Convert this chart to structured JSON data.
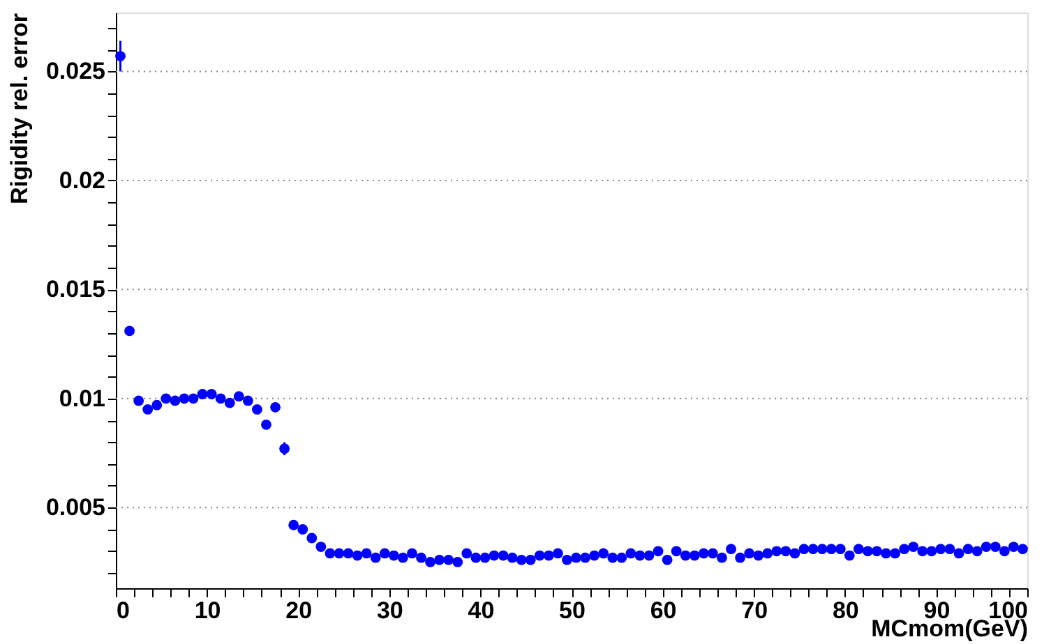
{
  "chart_data": {
    "type": "scatter",
    "xlabel": "MCmom(GeV)",
    "ylabel": "Rigidity rel. error",
    "x": [
      0.5,
      1.5,
      2.5,
      3.5,
      4.5,
      5.5,
      6.5,
      7.5,
      8.5,
      9.5,
      10.5,
      11.5,
      12.5,
      13.5,
      14.5,
      15.5,
      16.5,
      17.5,
      18.5,
      19.5,
      20.5,
      21.5,
      22.5,
      23.5,
      24.5,
      25.5,
      26.5,
      27.5,
      28.5,
      29.5,
      30.5,
      31.5,
      32.5,
      33.5,
      34.5,
      35.5,
      36.5,
      37.5,
      38.5,
      39.5,
      40.5,
      41.5,
      42.5,
      43.5,
      44.5,
      45.5,
      46.5,
      47.5,
      48.5,
      49.5,
      50.5,
      51.5,
      52.5,
      53.5,
      54.5,
      55.5,
      56.5,
      57.5,
      58.5,
      59.5,
      60.5,
      61.5,
      62.5,
      63.5,
      64.5,
      65.5,
      66.5,
      67.5,
      68.5,
      69.5,
      70.5,
      71.5,
      72.5,
      73.5,
      74.5,
      75.5,
      76.5,
      77.5,
      78.5,
      79.5,
      80.5,
      81.5,
      82.5,
      83.5,
      84.5,
      85.5,
      86.5,
      87.5,
      88.5,
      89.5,
      90.5,
      91.5,
      92.5,
      93.5,
      94.5,
      95.5,
      96.5,
      97.5,
      98.5,
      99.5
    ],
    "series": [
      {
        "color": "#0000ff",
        "values": [
          0.0257,
          0.0131,
          0.0099,
          0.0095,
          0.0097,
          0.01,
          0.0099,
          0.01,
          0.01,
          0.0102,
          0.0102,
          0.01,
          0.0098,
          0.0101,
          0.0099,
          0.0095,
          0.0088,
          0.0096,
          0.0077,
          0.0042,
          0.004,
          0.0036,
          0.0032,
          0.0029,
          0.0029,
          0.0029,
          0.0028,
          0.0029,
          0.0027,
          0.0029,
          0.0028,
          0.0027,
          0.0029,
          0.0027,
          0.0025,
          0.0026,
          0.0026,
          0.0025,
          0.0029,
          0.0027,
          0.0027,
          0.0028,
          0.0028,
          0.0027,
          0.0026,
          0.0026,
          0.0028,
          0.0028,
          0.0029,
          0.0026,
          0.0027,
          0.0027,
          0.0028,
          0.0029,
          0.0027,
          0.0027,
          0.0029,
          0.0028,
          0.0028,
          0.003,
          0.0026,
          0.003,
          0.0028,
          0.0028,
          0.0029,
          0.0029,
          0.0027,
          0.0031,
          0.0027,
          0.0029,
          0.0028,
          0.0029,
          0.003,
          0.003,
          0.0029,
          0.0031,
          0.0031,
          0.0031,
          0.0031,
          0.0031,
          0.0028,
          0.0031,
          0.003,
          0.003,
          0.0029,
          0.0029,
          0.0031,
          0.0032,
          0.003,
          0.003,
          0.0031,
          0.0031,
          0.0029,
          0.0031,
          0.003,
          0.0032,
          0.0032,
          0.003,
          0.0032,
          0.0031
        ],
        "errors": [
          0.0007,
          null,
          null,
          null,
          null,
          null,
          null,
          null,
          null,
          null,
          null,
          null,
          null,
          null,
          null,
          0.0001,
          null,
          0.0002,
          0.0003,
          0.0002,
          null,
          null,
          null,
          null,
          null,
          null,
          null,
          null,
          null,
          null,
          null,
          null,
          null,
          null,
          null,
          null,
          null,
          null,
          null,
          null,
          null,
          null,
          null,
          null,
          null,
          null,
          null,
          null,
          null,
          null,
          null,
          null,
          null,
          null,
          null,
          null,
          null,
          null,
          null,
          null,
          null,
          null,
          null,
          null,
          null,
          null,
          null,
          null,
          null,
          null,
          null,
          null,
          null,
          null,
          null,
          null,
          null,
          null,
          null,
          null,
          null,
          null,
          null,
          null,
          null,
          null,
          null,
          null,
          null,
          null,
          null,
          null,
          null,
          null,
          null,
          null,
          null,
          null,
          null,
          null
        ]
      }
    ],
    "xlim": [
      0,
      100
    ],
    "xticks": [
      0,
      {
        "value": 2,
        "label": null
      },
      {
        "value": 4,
        "label": null
      },
      {
        "value": 6,
        "label": null
      },
      {
        "value": 8,
        "label": null
      },
      10,
      {
        "value": 12,
        "label": null
      },
      {
        "value": 14,
        "label": null
      },
      {
        "value": 16,
        "label": null
      },
      {
        "value": 18,
        "label": null
      },
      20,
      {
        "value": 22,
        "label": null
      },
      {
        "value": 24,
        "label": null
      },
      {
        "value": 26,
        "label": null
      },
      {
        "value": 28,
        "label": null
      },
      30,
      {
        "value": 32,
        "label": null
      },
      {
        "value": 34,
        "label": null
      },
      {
        "value": 36,
        "label": null
      },
      {
        "value": 38,
        "label": null
      },
      40,
      {
        "value": 42,
        "label": null
      },
      {
        "value": 44,
        "label": null
      },
      {
        "value": 46,
        "label": null
      },
      {
        "value": 48,
        "label": null
      },
      50,
      {
        "value": 52,
        "label": null
      },
      {
        "value": 54,
        "label": null
      },
      {
        "value": 56,
        "label": null
      },
      {
        "value": 58,
        "label": null
      },
      60,
      {
        "value": 62,
        "label": null
      },
      {
        "value": 64,
        "label": null
      },
      {
        "value": 66,
        "label": null
      },
      {
        "value": 68,
        "label": null
      },
      70,
      {
        "value": 72,
        "label": null
      },
      {
        "value": 74,
        "label": null
      },
      {
        "value": 76,
        "label": null
      },
      {
        "value": 78,
        "label": null
      },
      80,
      {
        "value": 82,
        "label": null
      },
      {
        "value": 84,
        "label": null
      },
      {
        "value": 86,
        "label": null
      },
      {
        "value": 88,
        "label": null
      },
      90,
      {
        "value": 92,
        "label": null
      },
      {
        "value": 94,
        "label": null
      },
      {
        "value": 96,
        "label": null
      },
      {
        "value": 98,
        "label": null
      },
      100
    ],
    "ylim": [
      0.0013,
      0.0277
    ],
    "yticks": [
      {
        "value": 0.002,
        "label": null
      },
      {
        "value": 0.003,
        "label": null
      },
      {
        "value": 0.004,
        "label": null
      },
      0.005,
      {
        "value": 0.006,
        "label": null
      },
      {
        "value": 0.007,
        "label": null
      },
      {
        "value": 0.008,
        "label": null
      },
      {
        "value": 0.009,
        "label": null
      },
      0.01,
      {
        "value": 0.011,
        "label": null
      },
      {
        "value": 0.012,
        "label": null
      },
      {
        "value": 0.013,
        "label": null
      },
      {
        "value": 0.014,
        "label": null
      },
      0.015,
      {
        "value": 0.016,
        "label": null
      },
      {
        "value": 0.017,
        "label": null
      },
      {
        "value": 0.018,
        "label": null
      },
      {
        "value": 0.019,
        "label": null
      },
      0.02,
      {
        "value": 0.021,
        "label": null
      },
      {
        "value": 0.022,
        "label": null
      },
      {
        "value": 0.023,
        "label": null
      },
      {
        "value": 0.024,
        "label": null
      },
      0.025,
      {
        "value": 0.026,
        "label": null
      },
      {
        "value": 0.027,
        "label": null
      }
    ],
    "grid": "y",
    "marker": "circle"
  }
}
